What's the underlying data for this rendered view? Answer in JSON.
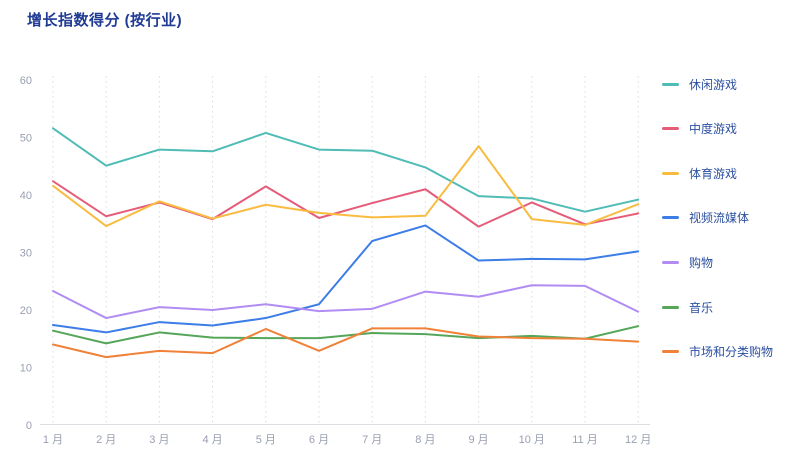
{
  "chart": {
    "title": "增长指数得分 (按行业)"
  },
  "colors": {
    "background": "#ffffff",
    "title": "#1e3a93",
    "legend_text": "#2b4fa0",
    "axis_text": "#999fb0",
    "axis_line": "#dddfe5",
    "gridline": "#d9dbe0"
  },
  "chart_data": {
    "type": "line",
    "title": "增长指数得分 (按行业)",
    "xlabel": "",
    "ylabel": "",
    "ylim": [
      0,
      60
    ],
    "y_ticks": [
      60,
      50,
      40,
      30,
      20,
      10,
      0
    ],
    "grid": "vertical-dashed",
    "legend_position": "right",
    "categories": [
      "1 月",
      "2 月",
      "3 月",
      "4 月",
      "5 月",
      "6 月",
      "7 月",
      "8 月",
      "9 月",
      "10 月",
      "11 月",
      "12 月"
    ],
    "series": [
      {
        "name": "休闲游戏",
        "color": "#4fbcb5",
        "values": [
          51.6,
          45.1,
          47.9,
          47.6,
          50.8,
          47.9,
          47.7,
          44.8,
          39.8,
          39.4,
          37.1,
          39.2
        ]
      },
      {
        "name": "中度游戏",
        "color": "#e55c78",
        "values": [
          42.4,
          36.3,
          38.7,
          35.8,
          41.5,
          36.0,
          38.6,
          41.0,
          34.5,
          38.7,
          34.9,
          36.8
        ]
      },
      {
        "name": "体育游戏",
        "color": "#f9bc40",
        "values": [
          41.6,
          34.6,
          38.9,
          35.9,
          38.3,
          36.9,
          36.1,
          36.4,
          48.5,
          35.8,
          34.8,
          38.4
        ]
      },
      {
        "name": "视频流媒体",
        "color": "#3d7de8",
        "values": [
          17.4,
          16.1,
          17.9,
          17.3,
          18.6,
          21.0,
          32.0,
          34.7,
          28.6,
          28.9,
          28.8,
          30.2
        ]
      },
      {
        "name": "购物",
        "color": "#b18cf2",
        "values": [
          23.3,
          18.6,
          20.5,
          20.0,
          21.0,
          19.8,
          20.2,
          23.2,
          22.3,
          24.3,
          24.2,
          19.7
        ]
      },
      {
        "name": "音乐",
        "color": "#56a65a",
        "values": [
          16.4,
          14.2,
          16.1,
          15.2,
          15.1,
          15.1,
          16.0,
          15.8,
          15.1,
          15.5,
          15.0,
          17.2
        ]
      },
      {
        "name": "市场和分类购物",
        "color": "#f08138",
        "values": [
          14.0,
          11.8,
          12.9,
          12.5,
          16.7,
          12.9,
          16.8,
          16.8,
          15.4,
          15.1,
          15.0,
          14.5
        ]
      }
    ]
  }
}
